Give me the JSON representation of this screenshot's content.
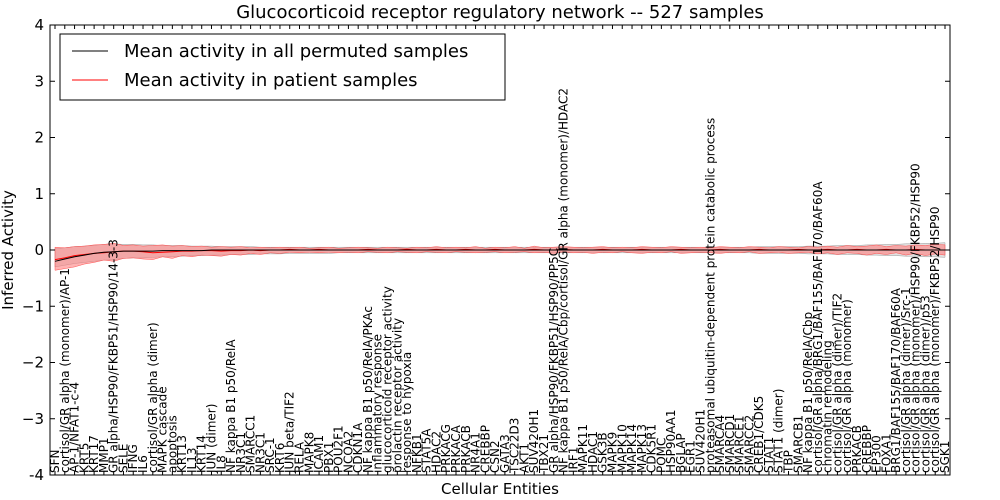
{
  "chart_data": {
    "type": "line",
    "title": "Glucocorticoid receptor regulatory network -- 527 samples",
    "xlabel": "Cellular Entities",
    "ylabel": "Inferred Activity",
    "ylim": [
      -4,
      4
    ],
    "yticks": [
      "-4",
      "−3",
      "−2",
      "−1",
      "0",
      "1",
      "2",
      "3",
      "4"
    ],
    "legend": {
      "placement": "top-left",
      "entries": [
        {
          "label": "Mean activity in all permuted samples",
          "color": "#000000"
        },
        {
          "label": "Mean activity in patient samples",
          "color": "#ff0000"
        }
      ]
    },
    "colors": {
      "permuted_band": "#c8c8c8",
      "patient_band": "#ff8080",
      "patient_line": "#ff0000",
      "permuted_line": "#000000"
    },
    "categories": [
      "SFN",
      "cortisol/GR alpha (monomer)/AP-1",
      "AP-1/NFAT1-c-4",
      "KRT5",
      "KRT17",
      "MMP1",
      "GR alpha/HSP90/FKBP51/HSP90/14-3-3",
      "SELE",
      "IFNG",
      "IL6",
      "cortisol/GR alpha (dimer)",
      "MAPK cascade",
      "apoptosis",
      "KRT13",
      "IL13",
      "KRT14",
      "JUN (dimer)",
      "IL8",
      "NF kappa B1 p50/RelA",
      "NR3C1",
      "SMARCC1",
      "NR3C1",
      "SRC-1",
      "KRT6",
      "JUN beta/TIF2",
      "RELA",
      "MAPK8",
      "ICAM1",
      "PBX1",
      "POU2F1",
      "NCOA2",
      "CDKN1A",
      "NF kappa B1 p50/RelA/PKAc",
      "inflammatory response",
      "glucocorticoid receptor activity",
      "prolactin receptor activity",
      "response to hypoxia",
      "NFKB1",
      "STAT5A",
      "HDAC2",
      "PRKACG",
      "PRKACA",
      "PRKACB",
      "NR4A1",
      "CREBBP",
      "CSN2",
      "GATA3",
      "TSC22D3",
      "AKT1",
      "SUV420H1",
      "TBX21",
      "GR alpha/HSP90/FKBP51/HSP90/PP5C",
      "NF kappa B1 p50/RelA/Cbp/cortisol/GR alpha (monomer)/HDAC2",
      "IRF1",
      "MAPK11",
      "HDAC1",
      "GSK3B",
      "MAPK9",
      "MAPK10",
      "MAPK14",
      "MAPK13",
      "CDK5R1",
      "POMC",
      "HSP90AA1",
      "BGLAP",
      "EGR1",
      "SUV420H1",
      "proteasomal ubiquitin-dependent protein catabolic process",
      "SMARCA4",
      "SMARCD1",
      "SMARCE1",
      "SMARCC2",
      "CREB1/CDK5",
      "STAT1",
      "STAT1 (dimer)",
      "TBP",
      "SMARCB1",
      "NF kappa B1 p50/RelA/Cbp",
      "cortisol/GR alpha/BRG1/BAF155/BAF170/BAF60A",
      "chromatin remodeling",
      "cortisol/GR alpha (dimer)/TIF2",
      "cortisol/GR alpha (monomer)",
      "PRKACB",
      "CREBBP",
      "EP300",
      "FOXA1",
      "BRG1/BAF155/BAF170/BAF60A",
      "cortisol/GR alpha (dimer)/Src-1",
      "cortisol/GR alpha (monomer)/HSP90/FKBP52/HSP90",
      "cortisol/GR alpha (dimer)/p53",
      "cortisol/GR alpha (monomer)/FKBP52/HSP90",
      "SGK1"
    ],
    "series": [
      {
        "name": "Mean activity in patient samples",
        "values": [
          -0.17,
          -0.14,
          -0.1,
          -0.08,
          -0.06,
          -0.05,
          -0.03,
          -0.02,
          -0.02,
          -0.03,
          -0.05,
          -0.04,
          -0.03,
          -0.02,
          -0.02,
          -0.01,
          -0.01,
          -0.02,
          -0.01,
          -0.01,
          0.0,
          -0.01,
          0.0,
          0.0,
          0.01,
          0.0,
          0.0,
          0.01,
          0.0,
          0.0,
          0.0,
          0.0,
          0.01,
          0.0,
          0.0,
          0.0,
          0.01,
          0.0,
          0.0,
          0.01,
          0.0,
          0.0,
          0.01,
          0.0,
          0.0,
          0.01,
          0.0,
          0.0,
          0.0,
          0.01,
          0.0,
          0.0,
          0.01,
          0.0,
          0.0,
          0.0,
          0.01,
          0.0,
          0.0,
          0.0,
          0.01,
          0.0,
          0.0,
          0.0,
          0.01,
          0.0,
          0.0,
          0.0,
          0.01,
          0.0,
          0.0,
          0.0,
          0.01,
          0.0,
          0.0,
          0.0,
          0.01,
          0.0,
          0.0,
          0.01,
          0.0,
          0.0,
          0.01,
          0.0,
          0.0,
          0.01,
          0.0,
          0.0,
          0.01,
          0.0,
          0.0,
          0.0
        ],
        "lower": [
          -0.36,
          -0.33,
          -0.3,
          -0.25,
          -0.22,
          -0.18,
          -0.2,
          -0.15,
          -0.14,
          -0.16,
          -0.17,
          -0.12,
          -0.15,
          -0.1,
          -0.12,
          -0.09,
          -0.1,
          -0.11,
          -0.08,
          -0.09,
          -0.06,
          -0.08,
          -0.05,
          -0.06,
          -0.04,
          -0.05,
          -0.04,
          -0.05,
          -0.04,
          -0.05,
          -0.04,
          -0.05,
          -0.03,
          -0.04,
          -0.05,
          -0.03,
          -0.04,
          -0.05,
          -0.03,
          -0.04,
          -0.05,
          -0.03,
          -0.04,
          -0.05,
          -0.04,
          -0.03,
          -0.05,
          -0.04,
          -0.03,
          -0.05,
          -0.04,
          -0.06,
          -0.03,
          -0.05,
          -0.04,
          -0.06,
          -0.04,
          -0.05,
          -0.03,
          -0.05,
          -0.06,
          -0.04,
          -0.05,
          -0.03,
          -0.06,
          -0.05,
          -0.04,
          -0.05,
          -0.06,
          -0.04,
          -0.05,
          -0.03,
          -0.06,
          -0.05,
          -0.04,
          -0.06,
          -0.05,
          -0.04,
          -0.07,
          -0.05,
          -0.08,
          -0.05,
          -0.06,
          -0.09,
          -0.06,
          -0.08,
          -0.05,
          -0.09,
          -0.06,
          -0.1,
          -0.07,
          -0.09
        ],
        "upper": [
          0.05,
          0.04,
          0.06,
          0.07,
          0.09,
          0.1,
          0.12,
          0.08,
          0.09,
          0.07,
          0.08,
          0.09,
          0.07,
          0.08,
          0.06,
          0.07,
          0.05,
          0.06,
          0.05,
          0.06,
          0.04,
          0.05,
          0.04,
          0.05,
          0.04,
          0.05,
          0.03,
          0.04,
          0.05,
          0.03,
          0.04,
          0.05,
          0.04,
          0.03,
          0.05,
          0.04,
          0.03,
          0.05,
          0.04,
          0.06,
          0.04,
          0.05,
          0.04,
          0.06,
          0.03,
          0.05,
          0.04,
          0.06,
          0.03,
          0.07,
          0.04,
          0.05,
          0.06,
          0.05,
          0.04,
          0.05,
          0.06,
          0.04,
          0.05,
          0.04,
          0.06,
          0.05,
          0.04,
          0.06,
          0.05,
          0.04,
          0.05,
          0.04,
          0.06,
          0.05,
          0.04,
          0.06,
          0.05,
          0.04,
          0.06,
          0.05,
          0.04,
          0.06,
          0.05,
          0.07,
          0.05,
          0.08,
          0.06,
          0.07,
          0.09,
          0.06,
          0.08,
          0.07,
          0.09,
          0.08,
          0.1,
          0.09
        ]
      },
      {
        "name": "Mean activity in all permuted samples",
        "values": [
          -0.2,
          -0.16,
          -0.12,
          -0.09,
          -0.06,
          -0.04,
          -0.03,
          -0.02,
          -0.02,
          -0.02,
          -0.02,
          -0.01,
          -0.01,
          -0.01,
          -0.01,
          -0.01,
          0.0,
          0.0,
          0.0,
          0.0,
          0.0,
          0.0,
          0.0,
          0.0,
          0.0,
          0.0,
          0.0,
          0.0,
          0.0,
          0.0,
          0.0,
          0.0,
          0.0,
          0.0,
          0.0,
          0.0,
          0.0,
          0.0,
          0.0,
          0.0,
          0.0,
          0.0,
          0.0,
          0.0,
          0.0,
          0.0,
          0.0,
          0.0,
          0.0,
          0.0,
          0.0,
          0.0,
          0.0,
          0.0,
          0.0,
          0.0,
          0.0,
          0.0,
          0.0,
          0.0,
          0.0,
          0.0,
          0.0,
          0.0,
          0.0,
          0.0,
          0.0,
          0.0,
          0.0,
          0.0,
          0.0,
          0.0,
          0.0,
          0.0,
          0.0,
          0.0,
          0.0,
          0.0,
          0.0,
          0.0,
          0.0,
          0.0,
          0.0,
          0.0,
          0.0,
          0.0,
          0.0,
          0.0,
          0.0,
          0.0,
          0.0,
          0.0
        ],
        "lower": [
          -0.3,
          -0.27,
          -0.24,
          -0.22,
          -0.2,
          -0.18,
          -0.17,
          -0.15,
          -0.14,
          -0.14,
          -0.13,
          -0.12,
          -0.12,
          -0.11,
          -0.1,
          -0.1,
          -0.09,
          -0.09,
          -0.08,
          -0.08,
          -0.08,
          -0.07,
          -0.07,
          -0.07,
          -0.06,
          -0.06,
          -0.06,
          -0.06,
          -0.06,
          -0.05,
          -0.05,
          -0.05,
          -0.05,
          -0.05,
          -0.05,
          -0.05,
          -0.05,
          -0.05,
          -0.05,
          -0.05,
          -0.05,
          -0.05,
          -0.05,
          -0.05,
          -0.05,
          -0.05,
          -0.05,
          -0.05,
          -0.05,
          -0.05,
          -0.05,
          -0.05,
          -0.05,
          -0.05,
          -0.05,
          -0.05,
          -0.05,
          -0.05,
          -0.05,
          -0.05,
          -0.05,
          -0.05,
          -0.05,
          -0.05,
          -0.05,
          -0.05,
          -0.05,
          -0.05,
          -0.05,
          -0.05,
          -0.05,
          -0.05,
          -0.06,
          -0.06,
          -0.06,
          -0.06,
          -0.06,
          -0.07,
          -0.07,
          -0.07,
          -0.08,
          -0.08,
          -0.08,
          -0.09,
          -0.09,
          -0.1,
          -0.1,
          -0.11,
          -0.11,
          -0.12,
          -0.12,
          -0.13
        ],
        "upper": [
          0.02,
          0.04,
          0.06,
          0.07,
          0.08,
          0.1,
          0.11,
          0.1,
          0.1,
          0.09,
          0.09,
          0.08,
          0.08,
          0.08,
          0.07,
          0.07,
          0.07,
          0.06,
          0.06,
          0.06,
          0.06,
          0.05,
          0.05,
          0.05,
          0.05,
          0.05,
          0.05,
          0.05,
          0.05,
          0.05,
          0.05,
          0.05,
          0.05,
          0.05,
          0.05,
          0.05,
          0.05,
          0.05,
          0.05,
          0.05,
          0.05,
          0.05,
          0.05,
          0.05,
          0.05,
          0.05,
          0.05,
          0.05,
          0.05,
          0.05,
          0.05,
          0.05,
          0.05,
          0.05,
          0.05,
          0.05,
          0.05,
          0.05,
          0.05,
          0.05,
          0.05,
          0.05,
          0.05,
          0.05,
          0.05,
          0.05,
          0.05,
          0.05,
          0.05,
          0.05,
          0.05,
          0.05,
          0.06,
          0.06,
          0.06,
          0.06,
          0.06,
          0.07,
          0.07,
          0.07,
          0.08,
          0.08,
          0.08,
          0.09,
          0.09,
          0.1,
          0.1,
          0.11,
          0.11,
          0.12,
          0.12,
          0.13
        ]
      }
    ]
  }
}
